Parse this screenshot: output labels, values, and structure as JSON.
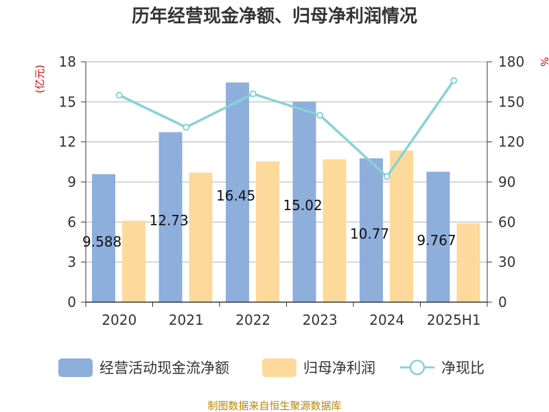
{
  "chart_data": {
    "type": "bar",
    "title": "历年经营现金净额、归母净利润情况",
    "categories": [
      "2020",
      "2021",
      "2022",
      "2023",
      "2024",
      "2025H1"
    ],
    "y_left": {
      "unit": "(亿元)",
      "ylim": [
        0,
        18
      ],
      "ticks": [
        "0",
        "3",
        "6",
        "9",
        "12",
        "15",
        "18"
      ]
    },
    "y_right": {
      "unit": "%",
      "ylim": [
        0,
        180
      ],
      "ticks": [
        "0",
        "30",
        "60",
        "90",
        "120",
        "150",
        "180"
      ]
    },
    "series": [
      {
        "name": "经营活动现金流净额",
        "type": "bar",
        "axis": "left",
        "color": "#8eaedc",
        "values": [
          9.588,
          12.73,
          16.45,
          15.02,
          10.77,
          9.767
        ],
        "labels": [
          "9.588",
          "12.73",
          "16.45",
          "15.02",
          "10.77",
          "9.767"
        ]
      },
      {
        "name": "归母净利润",
        "type": "bar",
        "axis": "left",
        "color": "#fdd99b",
        "values": [
          6.1,
          9.7,
          10.55,
          10.7,
          11.35,
          5.9
        ]
      },
      {
        "name": "净现比",
        "type": "line",
        "axis": "right",
        "color": "#85d3d6",
        "values": [
          155,
          131,
          156,
          140,
          94,
          166
        ]
      }
    ],
    "grid": true,
    "legend": "bottom"
  },
  "source": "制图数据来自恒生聚源数据库"
}
